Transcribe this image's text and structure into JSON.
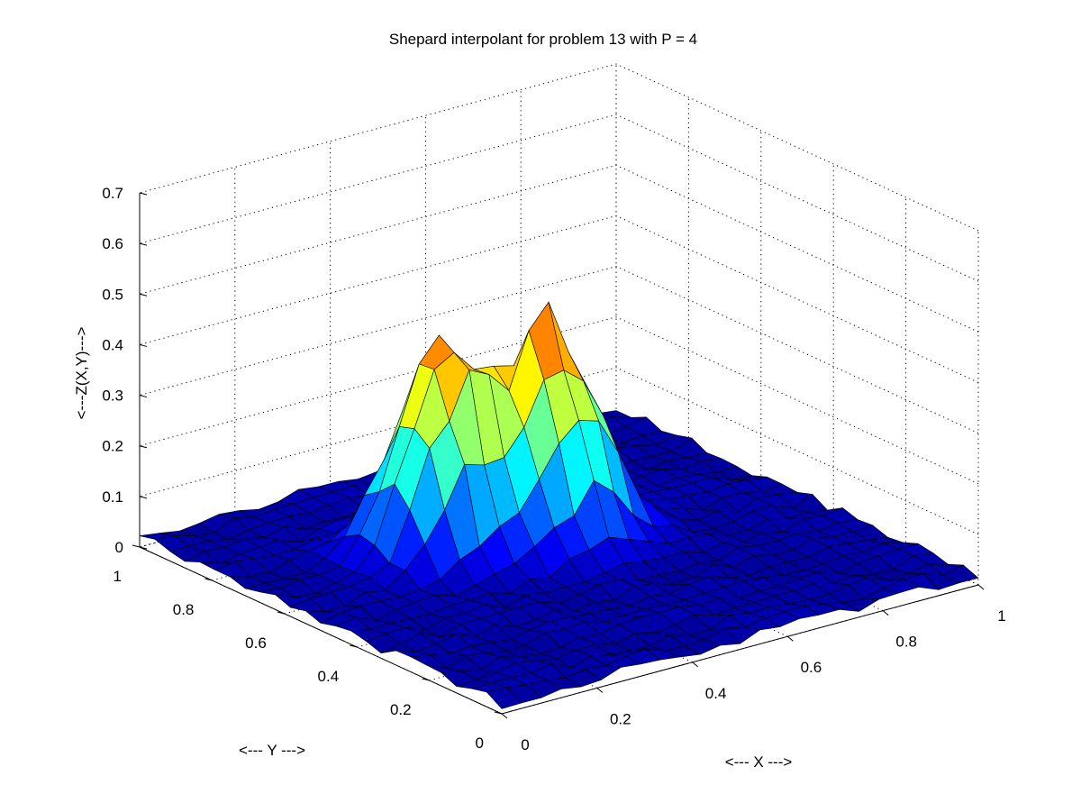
{
  "chart_data": {
    "type": "surface",
    "title": "Shepard interpolant for problem 13 with P = 4",
    "xlabel": "<--- X --->",
    "ylabel": "<--- Y --->",
    "zlabel": "<---Z(X,Y)--->",
    "xlim": [
      0,
      1
    ],
    "ylim": [
      0,
      1
    ],
    "zlim": [
      0,
      0.7
    ],
    "x_ticks": [
      0,
      0.2,
      0.4,
      0.6,
      0.8,
      1
    ],
    "x_tick_labels": [
      "0",
      "0.2",
      "0.4",
      "0.6",
      "0.8",
      "1"
    ],
    "y_ticks": [
      0,
      0.2,
      0.4,
      0.6,
      0.8,
      1
    ],
    "y_tick_labels": [
      "0",
      "0.2",
      "0.4",
      "0.6",
      "0.8",
      "1"
    ],
    "z_ticks": [
      0,
      0.1,
      0.2,
      0.3,
      0.4,
      0.5,
      0.6,
      0.7
    ],
    "z_tick_labels": [
      "0",
      "0.1",
      "0.2",
      "0.3",
      "0.4",
      "0.5",
      "0.6",
      "0.7"
    ],
    "grid": true,
    "colormap": "jet",
    "grid_points": 25,
    "peaks": [
      {
        "x": 0.36,
        "y": 0.64,
        "z": 0.48
      },
      {
        "x": 0.55,
        "y": 0.57,
        "z": 0.44
      }
    ],
    "base_level": 0.02
  }
}
